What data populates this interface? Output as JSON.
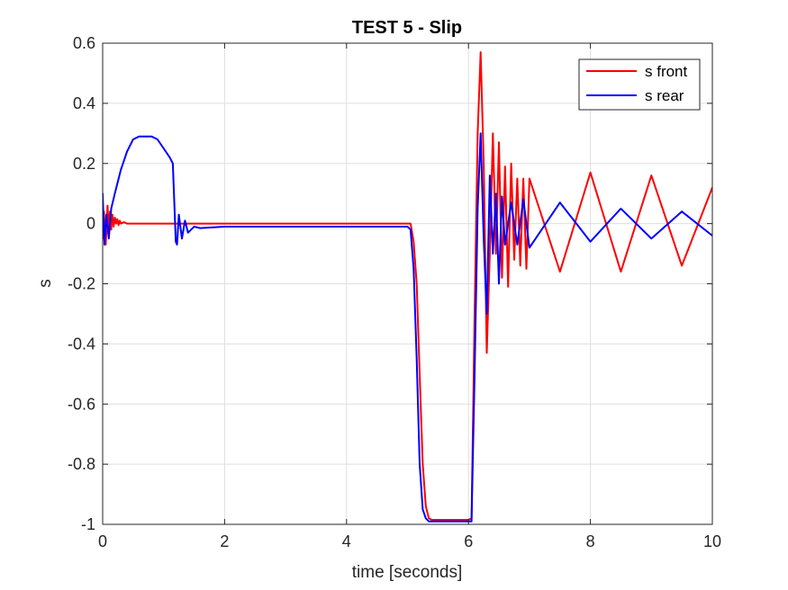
{
  "chart_data": {
    "type": "line",
    "title": "TEST 5 - Slip",
    "xlabel": "time [seconds]",
    "ylabel": "s",
    "xlim": [
      0,
      10
    ],
    "ylim": [
      -1,
      0.6
    ],
    "xticks": [
      0,
      2,
      4,
      6,
      8,
      10
    ],
    "yticks": [
      -1,
      -0.8,
      -0.6,
      -0.4,
      -0.2,
      0,
      0.2,
      0.4,
      0.6
    ],
    "xtick_labels": [
      "0",
      "2",
      "4",
      "6",
      "8",
      "10"
    ],
    "ytick_labels": [
      "-1",
      "-0.8",
      "-0.6",
      "-0.4",
      "-0.2",
      "0",
      "0.2",
      "0.4",
      "0.6"
    ],
    "grid": true,
    "legend_position": "top-right",
    "series": [
      {
        "name": "s front",
        "color": "#ff0000",
        "x": [
          0,
          0.02,
          0.05,
          0.08,
          0.1,
          0.12,
          0.14,
          0.16,
          0.18,
          0.2,
          0.22,
          0.24,
          0.26,
          0.28,
          0.3,
          0.35,
          0.4,
          0.5,
          0.6,
          1.0,
          1.2,
          1.3,
          2.0,
          4.0,
          5.0,
          5.05,
          5.1,
          5.15,
          5.2,
          5.25,
          5.3,
          5.35,
          5.4,
          5.5,
          5.6,
          5.7,
          5.8,
          5.9,
          6.0,
          6.05,
          6.1,
          6.15,
          6.2,
          6.25,
          6.3,
          6.35,
          6.4,
          6.45,
          6.5,
          6.55,
          6.6,
          6.65,
          6.7,
          6.75,
          6.8,
          6.85,
          6.9,
          6.95,
          7.0,
          7.5,
          8.0,
          8.5,
          9.0,
          9.5,
          10.0
        ],
        "values": [
          -0.05,
          0.04,
          -0.07,
          0.06,
          -0.02,
          0.04,
          -0.02,
          0.03,
          -0.01,
          0.02,
          0.0,
          0.015,
          -0.005,
          0.01,
          0.0,
          0.005,
          0.0,
          0.0,
          0.0,
          0.0,
          0.0,
          0.0,
          0.0,
          0.0,
          0.0,
          0.0,
          -0.06,
          -0.2,
          -0.5,
          -0.8,
          -0.94,
          -0.98,
          -0.985,
          -0.985,
          -0.985,
          -0.985,
          -0.985,
          -0.985,
          -0.985,
          -0.98,
          -0.3,
          0.3,
          0.57,
          0.2,
          -0.43,
          -0.1,
          0.3,
          -0.1,
          0.27,
          -0.18,
          0.19,
          -0.21,
          0.2,
          -0.12,
          0.15,
          -0.14,
          0.15,
          -0.15,
          0.15,
          -0.16,
          0.17,
          -0.16,
          0.16,
          -0.14,
          0.12
        ]
      },
      {
        "name": "s rear",
        "color": "#0000ff",
        "x": [
          0,
          0.03,
          0.06,
          0.1,
          0.14,
          0.2,
          0.3,
          0.4,
          0.5,
          0.6,
          0.7,
          0.8,
          0.9,
          1.0,
          1.1,
          1.15,
          1.2,
          1.22,
          1.25,
          1.3,
          1.35,
          1.4,
          1.5,
          1.6,
          2.0,
          4.0,
          5.0,
          5.05,
          5.1,
          5.15,
          5.2,
          5.25,
          5.3,
          5.35,
          5.4,
          5.5,
          5.7,
          5.9,
          6.0,
          6.05,
          6.1,
          6.15,
          6.2,
          6.25,
          6.3,
          6.35,
          6.4,
          6.45,
          6.5,
          6.55,
          6.6,
          6.7,
          6.8,
          6.9,
          7.0,
          7.5,
          8.0,
          8.5,
          9.0,
          9.5,
          10.0
        ],
        "values": [
          0.1,
          -0.07,
          0.03,
          -0.05,
          0.05,
          0.1,
          0.18,
          0.24,
          0.28,
          0.29,
          0.29,
          0.29,
          0.28,
          0.25,
          0.22,
          0.2,
          -0.06,
          -0.07,
          0.03,
          -0.05,
          0.01,
          -0.03,
          -0.01,
          -0.015,
          -0.01,
          -0.01,
          -0.01,
          -0.02,
          -0.15,
          -0.45,
          -0.8,
          -0.95,
          -0.98,
          -0.99,
          -0.99,
          -0.99,
          -0.99,
          -0.99,
          -0.99,
          -0.99,
          -0.5,
          0.05,
          0.3,
          -0.05,
          -0.3,
          0.16,
          -0.1,
          0.1,
          -0.2,
          0.09,
          -0.07,
          0.07,
          -0.07,
          0.08,
          -0.08,
          0.07,
          -0.06,
          0.05,
          -0.05,
          0.04,
          -0.04
        ]
      }
    ]
  }
}
